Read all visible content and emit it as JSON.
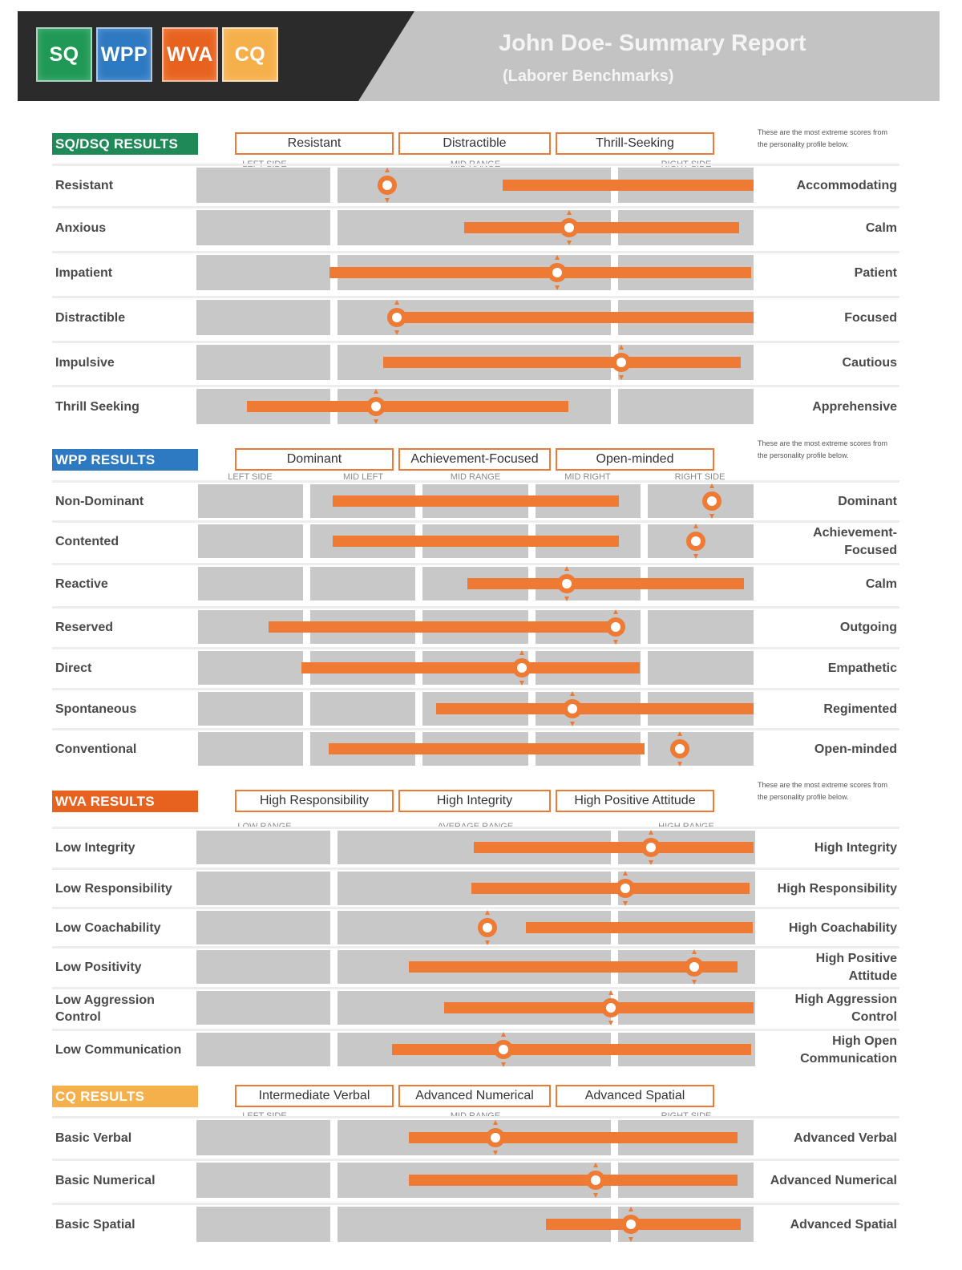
{
  "header": {
    "logos": [
      {
        "label": "SQ",
        "color": "#1f9955"
      },
      {
        "label": "WPP",
        "color": "#2d79c2"
      },
      {
        "label": "WVA",
        "color": "#e8621f"
      },
      {
        "label": "CQ",
        "color": "#f6b04b"
      }
    ],
    "title": "John Doe- Summary Report",
    "subtitle": "(Laborer Benchmarks)"
  },
  "sections": {
    "sq": {
      "badge": "SQ/DSQ RESULTS",
      "badge_color": "#1f8a58",
      "tabs": [
        "Resistant",
        "Distractible",
        "Thrill-Seeking"
      ],
      "note": "These are the most extreme scores from the personality profile below.",
      "range_labels": [
        "LEFT SIDE",
        "MID RANGE",
        "RIGHT SIDE"
      ],
      "rows": [
        {
          "left": "Resistant",
          "right": "Accommodating",
          "bar": [
            0.549,
            1.0
          ],
          "marker": 0.342
        },
        {
          "left": "Anxious",
          "right": "Calm",
          "bar": [
            0.481,
            0.974
          ],
          "marker": 0.669
        },
        {
          "left": "Impatient",
          "right": "Patient",
          "bar": [
            0.239,
            0.996
          ],
          "marker": 0.648
        },
        {
          "left": "Distractible",
          "right": "Focused",
          "bar": [
            0.359,
            1.0
          ],
          "marker": 0.359
        },
        {
          "left": "Impulsive",
          "right": "Cautious",
          "bar": [
            0.335,
            0.977
          ],
          "marker": 0.763
        },
        {
          "left": "Thrill Seeking",
          "right": "Apprehensive",
          "bar": [
            0.09,
            0.667
          ],
          "marker": 0.322
        }
      ]
    },
    "wpp": {
      "badge": "WPP RESULTS",
      "badge_color": "#2d79c2",
      "tabs": [
        "Dominant",
        "Achievement-Focused",
        "Open-minded"
      ],
      "note": "These are the most extreme scores from the personality profile below.",
      "range_labels": [
        "LEFT SIDE",
        "MID LEFT",
        "MID RANGE",
        "MID RIGHT",
        "RIGHT SIDE"
      ],
      "rows": [
        {
          "left": "Non-Dominant",
          "right": "Dominant",
          "bar": [
            0.245,
            0.759
          ],
          "marker": 0.925
        },
        {
          "left": "Contented",
          "right": "Achievement-Focused",
          "bar": [
            0.245,
            0.759
          ],
          "marker": 0.896
        },
        {
          "left": "Reactive",
          "right": "Calm",
          "bar": [
            0.487,
            0.983
          ],
          "marker": 0.665
        },
        {
          "left": "Reserved",
          "right": "Outgoing",
          "bar": [
            0.13,
            0.753
          ],
          "marker": 0.753
        },
        {
          "left": "Direct",
          "right": "Empathetic",
          "bar": [
            0.189,
            0.795
          ],
          "marker": 0.584
        },
        {
          "left": "Spontaneous",
          "right": "Regimented",
          "bar": [
            0.43,
            1.0
          ],
          "marker": 0.675
        },
        {
          "left": "Conventional",
          "right": "Open-minded",
          "bar": [
            0.238,
            0.804
          ],
          "marker": 0.867
        }
      ]
    },
    "wva": {
      "badge": "WVA RESULTS",
      "badge_color": "#e8621f",
      "tabs": [
        "High Responsibility",
        "High Integrity",
        "High Positive Attitude"
      ],
      "note": "These are the most extreme scores from the personality profile below.",
      "range_labels": [
        "LOW RANGE",
        "AVERAGE RANGE",
        "HIGH RANGE"
      ],
      "rows": [
        {
          "left": "Low Integrity",
          "right": "High Integrity",
          "bar": [
            0.498,
            1.0
          ],
          "marker": 0.816
        },
        {
          "left": "Low Responsibility",
          "right": "High Responsibility",
          "bar": [
            0.494,
            0.993
          ],
          "marker": 0.77
        },
        {
          "left": "Low Coachability",
          "right": "High Coachability",
          "bar": [
            0.591,
            0.998
          ],
          "marker": 0.522
        },
        {
          "left": "Low Positivity",
          "right": "High Positive Attitude",
          "bar": [
            0.382,
            0.971
          ],
          "marker": 0.893
        },
        {
          "left": "Low Aggression Control",
          "right": "High Aggression Control",
          "bar": [
            0.445,
            1.0
          ],
          "marker": 0.744
        },
        {
          "left": "Low Communication",
          "right": "High Open Communication",
          "bar": [
            0.351,
            0.996
          ],
          "marker": 0.551
        }
      ]
    },
    "cq": {
      "badge": "CQ RESULTS",
      "badge_color": "#f6b04b",
      "tabs": [
        "Intermediate Verbal",
        "Advanced Numerical",
        "Advanced Spatial"
      ],
      "range_labels": [
        "LEFT SIDE",
        "MID RANGE",
        "RIGHT SIDE"
      ],
      "rows": [
        {
          "left": "Basic Verbal",
          "right": "Advanced Verbal",
          "bar": [
            0.382,
            0.971
          ],
          "marker": 0.536
        },
        {
          "left": "Basic Numerical",
          "right": "Advanced Numerical",
          "bar": [
            0.382,
            0.971
          ],
          "marker": 0.716
        },
        {
          "left": "Basic Spatial",
          "right": "Advanced Spatial",
          "bar": [
            0.628,
            0.977
          ],
          "marker": 0.78
        }
      ]
    }
  }
}
